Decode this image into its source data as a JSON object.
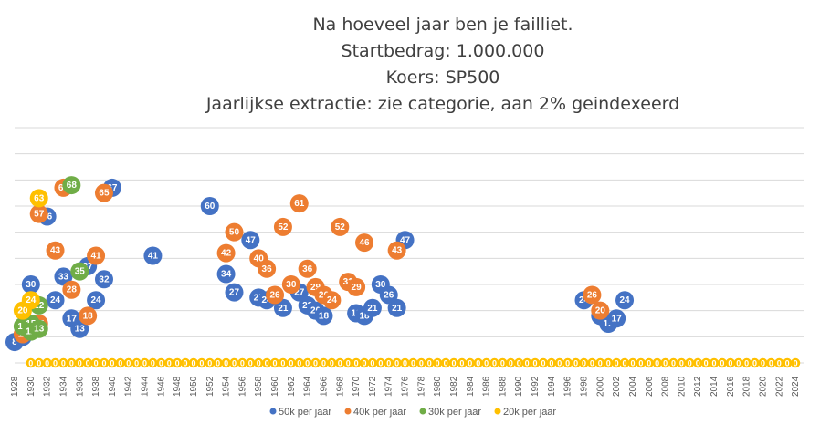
{
  "chart_data": {
    "type": "scatter",
    "title": [
      "Na hoeveel jaar ben je failliet.",
      "Startbedrag: 1.000.000",
      "Koers: SP500",
      "Jaarlijkse extractie: zie categorie, aan 2% geindexeerd"
    ],
    "xlabel": "",
    "ylabel": "",
    "x_ticks": [
      "1928",
      "1930",
      "1932",
      "1934",
      "1936",
      "1938",
      "1940",
      "1942",
      "1944",
      "1946",
      "1948",
      "1950",
      "1952",
      "1954",
      "1956",
      "1958",
      "1960",
      "1962",
      "1964",
      "1966",
      "1968",
      "1970",
      "1972",
      "1974",
      "1976",
      "1978",
      "1980",
      "1982",
      "1984",
      "1986",
      "1988",
      "1990",
      "1992",
      "1994",
      "1996",
      "1998",
      "2000",
      "2002",
      "2004",
      "2006",
      "2008",
      "2010",
      "2012",
      "2014",
      "2016",
      "2018",
      "2020",
      "2022",
      "2024"
    ],
    "xlim": [
      1928,
      2025
    ],
    "ylim": [
      0,
      90
    ],
    "y_gridlines": [
      0,
      10,
      20,
      30,
      40,
      50,
      60,
      70,
      80,
      90
    ],
    "zero_row": {
      "label": "0",
      "x_start": 1930,
      "x_end": 2024
    },
    "legend_position": "bottom",
    "series": [
      {
        "name": "50k per jaar",
        "color": "#4472C4",
        "points": [
          [
            1928,
            8
          ],
          [
            1929,
            10
          ],
          [
            1930,
            13
          ],
          [
            1930,
            30
          ],
          [
            1932,
            56
          ],
          [
            1933,
            24
          ],
          [
            1934,
            33
          ],
          [
            1935,
            17
          ],
          [
            1936,
            13
          ],
          [
            1937,
            37
          ],
          [
            1938,
            24
          ],
          [
            1939,
            32
          ],
          [
            1940,
            67
          ],
          [
            1945,
            41
          ],
          [
            1952,
            60
          ],
          [
            1954,
            34
          ],
          [
            1955,
            27
          ],
          [
            1957,
            47
          ],
          [
            1958,
            25
          ],
          [
            1959,
            24
          ],
          [
            1961,
            21
          ],
          [
            1963,
            27
          ],
          [
            1964,
            22
          ],
          [
            1965,
            20
          ],
          [
            1966,
            18
          ],
          [
            1970,
            19
          ],
          [
            1971,
            18
          ],
          [
            1972,
            21
          ],
          [
            1973,
            30
          ],
          [
            1974,
            26
          ],
          [
            1975,
            21
          ],
          [
            1976,
            47
          ],
          [
            1998,
            24
          ],
          [
            2000,
            18
          ],
          [
            2001,
            15
          ],
          [
            2002,
            17
          ],
          [
            2003,
            24
          ]
        ]
      },
      {
        "name": "40k per jaar",
        "color": "#ED7D31",
        "points": [
          [
            1929,
            11
          ],
          [
            1931,
            15
          ],
          [
            1931,
            57
          ],
          [
            1933,
            43
          ],
          [
            1934,
            67
          ],
          [
            1935,
            28
          ],
          [
            1937,
            18
          ],
          [
            1938,
            41
          ],
          [
            1939,
            65
          ],
          [
            1954,
            42
          ],
          [
            1955,
            50
          ],
          [
            1958,
            40
          ],
          [
            1959,
            36
          ],
          [
            1960,
            26
          ],
          [
            1961,
            52
          ],
          [
            1962,
            30
          ],
          [
            1963,
            61
          ],
          [
            1964,
            36
          ],
          [
            1965,
            29
          ],
          [
            1966,
            26
          ],
          [
            1967,
            24
          ],
          [
            1968,
            52
          ],
          [
            1969,
            31
          ],
          [
            1970,
            29
          ],
          [
            1971,
            46
          ],
          [
            1975,
            43
          ],
          [
            1999,
            26
          ],
          [
            2000,
            20
          ]
        ]
      },
      {
        "name": "30k per jaar",
        "color": "#70AD47",
        "points": [
          [
            1929,
            14
          ],
          [
            1930,
            15
          ],
          [
            1930,
            12
          ],
          [
            1931,
            13
          ],
          [
            1931,
            22
          ],
          [
            1935,
            68
          ],
          [
            1936,
            35
          ]
        ]
      },
      {
        "name": "20k per jaar",
        "color": "#FFC000",
        "points": [
          [
            1929,
            20
          ],
          [
            1930,
            24
          ],
          [
            1931,
            63
          ]
        ]
      }
    ]
  }
}
